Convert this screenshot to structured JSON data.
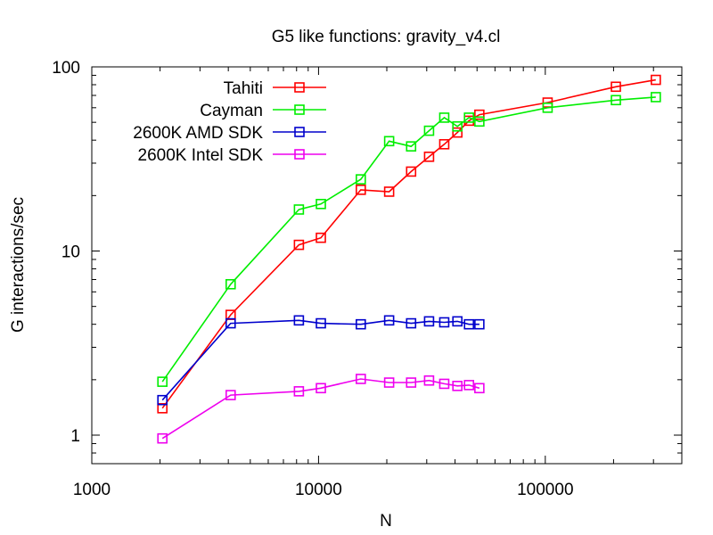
{
  "chart_data": {
    "type": "line",
    "title": "G5 like functions: gravity_v4.cl",
    "xlabel": "N",
    "ylabel": "G interactions/sec",
    "xscale": "log",
    "yscale": "log",
    "xlim": [
      1000,
      400000
    ],
    "ylim": [
      0.7,
      100
    ],
    "x_ticks": [
      1000,
      10000,
      100000
    ],
    "x_tick_labels": [
      "1000",
      "10000",
      "100000"
    ],
    "y_ticks": [
      1,
      10,
      100
    ],
    "y_tick_labels": [
      "1",
      "10",
      "100"
    ],
    "grid": false,
    "legend_position": "top-left",
    "marker": "square",
    "series": [
      {
        "name": "Tahiti",
        "color": "#ff0000",
        "x": [
          2048,
          4096,
          8192,
          10240,
          15360,
          20480,
          25600,
          30720,
          35840,
          40960,
          46080,
          51200,
          102400,
          204800,
          307200
        ],
        "y": [
          1.4,
          4.5,
          10.8,
          11.8,
          21.5,
          21.0,
          27.0,
          32.5,
          38.0,
          44.0,
          51.0,
          55.0,
          64.0,
          78.0,
          85.0
        ]
      },
      {
        "name": "Cayman",
        "color": "#00ee00",
        "x": [
          2048,
          4096,
          8192,
          10240,
          15360,
          20480,
          25600,
          30720,
          35840,
          40960,
          46080,
          51200,
          102400,
          204800,
          307200
        ],
        "y": [
          1.95,
          6.6,
          16.8,
          18.0,
          24.5,
          39.5,
          37.0,
          45.0,
          53.0,
          47.5,
          53.0,
          50.5,
          60.0,
          66.0,
          68.5
        ]
      },
      {
        "name": "2600K AMD SDK",
        "color": "#0000cc",
        "x": [
          2048,
          4096,
          8192,
          10240,
          15360,
          20480,
          25600,
          30720,
          35840,
          40960,
          46080,
          51200
        ],
        "y": [
          1.55,
          4.05,
          4.2,
          4.05,
          4.0,
          4.2,
          4.05,
          4.15,
          4.1,
          4.15,
          4.0,
          4.0
        ]
      },
      {
        "name": "2600K Intel SDK",
        "color": "#ee00ee",
        "x": [
          2048,
          4096,
          8192,
          10240,
          15360,
          20480,
          25600,
          30720,
          35840,
          40960,
          46080,
          51200
        ],
        "y": [
          0.96,
          1.65,
          1.73,
          1.8,
          2.02,
          1.93,
          1.93,
          1.98,
          1.9,
          1.85,
          1.87,
          1.8
        ]
      }
    ]
  }
}
